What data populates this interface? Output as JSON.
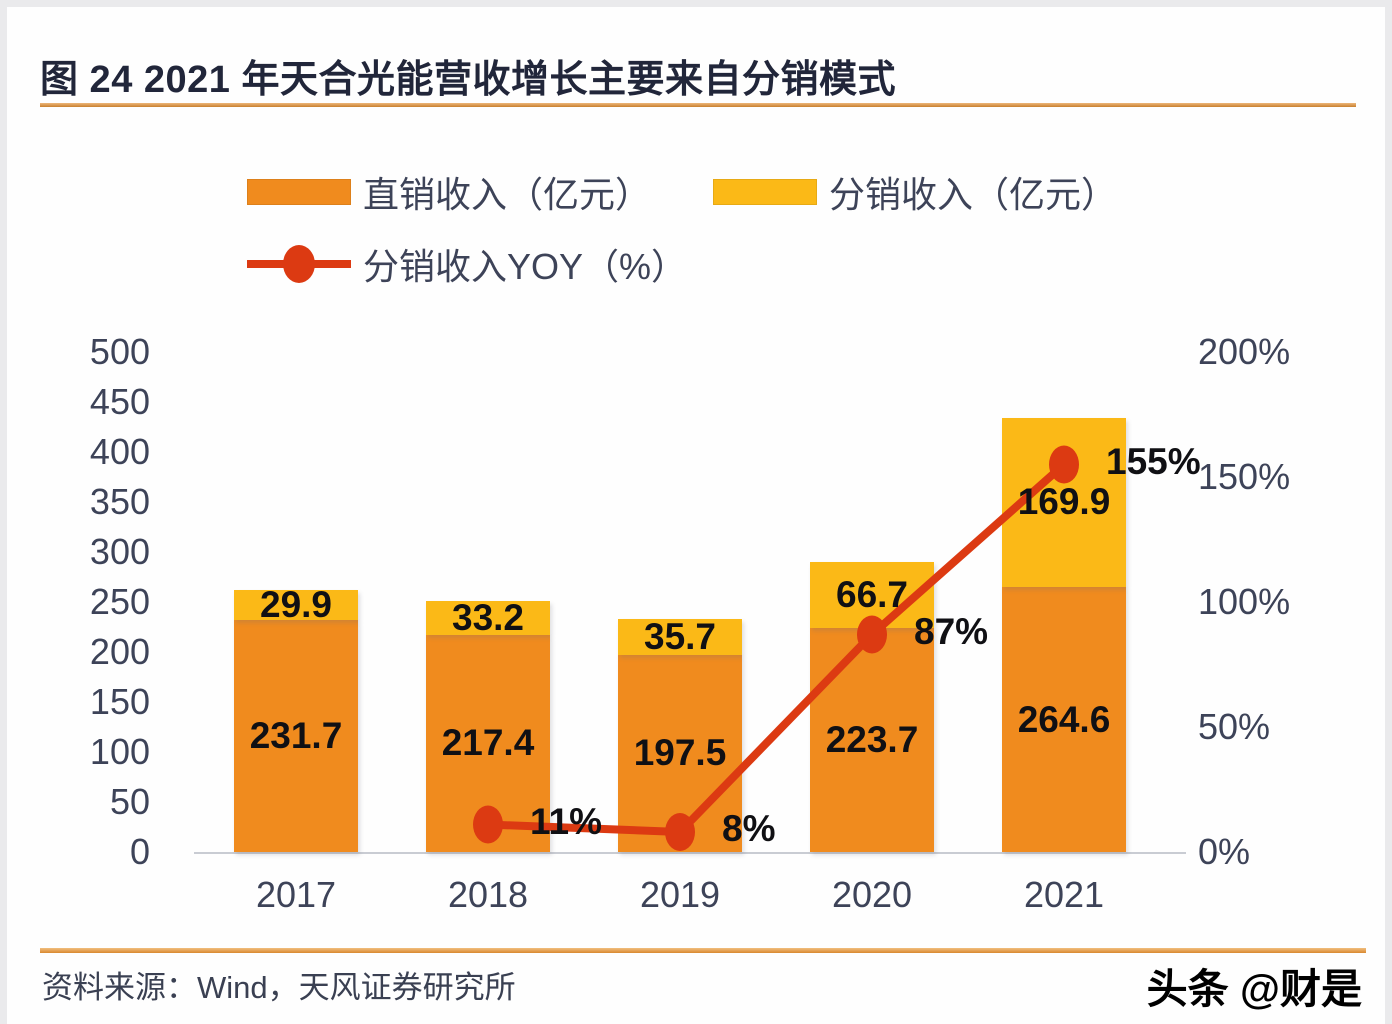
{
  "header": {
    "title": "图 24 2021 年天合光能营收增长主要来自分销模式"
  },
  "legend": {
    "direct_label": "直销收入（亿元）",
    "distribution_label": "分销收入（亿元）",
    "yoy_label": "分销收入YOY（%）"
  },
  "footer": {
    "source": "资料来源：Wind，天风证券研究所",
    "watermark": "头条 @财是"
  },
  "colors": {
    "direct_bar": "#F08B1E",
    "distribution_bar": "#FBB917",
    "yoy_line": "#DC3A12",
    "axis_text": "#3D4358",
    "title_text": "#21263A",
    "bar_label_text": "#101014",
    "baseline_gray": "#C9CCD3",
    "separator_orange": "#D9882F"
  },
  "chart_data": {
    "type": "bar",
    "subtype": "stacked-bars-with-line-overlay",
    "title": "图 24 2021 年天合光能营收增长主要来自分销模式",
    "categories": [
      "2017",
      "2018",
      "2019",
      "2020",
      "2021"
    ],
    "series": [
      {
        "name": "直销收入（亿元）",
        "type": "bar",
        "stack": "revenue",
        "axis": "left",
        "values": [
          231.7,
          217.4,
          197.5,
          223.7,
          264.6
        ],
        "labels": [
          "231.7",
          "217.4",
          "197.5",
          "223.7",
          "264.6"
        ]
      },
      {
        "name": "分销收入（亿元）",
        "type": "bar",
        "stack": "revenue",
        "axis": "left",
        "values": [
          29.9,
          33.2,
          35.7,
          66.7,
          169.9
        ],
        "labels": [
          "29.9",
          "33.2",
          "35.7",
          "66.7",
          "169.9"
        ]
      },
      {
        "name": "分销收入YOY（%）",
        "type": "line",
        "axis": "right",
        "values": [
          null,
          11,
          8,
          87,
          155
        ],
        "labels": [
          "",
          "11%",
          "8%",
          "87%",
          "155%"
        ]
      }
    ],
    "left_axis": {
      "ticks": [
        "500",
        "450",
        "400",
        "350",
        "300",
        "250",
        "200",
        "150",
        "100",
        "50",
        "0"
      ],
      "min": 0,
      "max": 500
    },
    "right_axis": {
      "ticks": [
        "200%",
        "150%",
        "100%",
        "50%",
        "0%"
      ],
      "min": 0,
      "max": 200
    },
    "grid": false,
    "legend_position": "top-left"
  }
}
